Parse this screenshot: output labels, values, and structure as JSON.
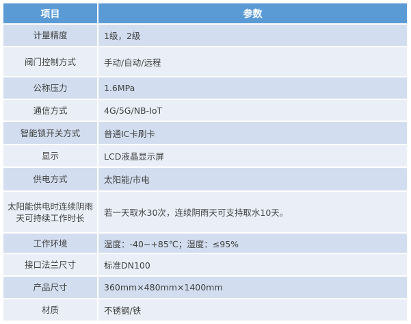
{
  "header": {
    "col1": "项目",
    "col2": "参数"
  },
  "rows": [
    {
      "k": "计量精度",
      "v": "1级，2级"
    },
    {
      "k": "阀门控制方式",
      "v": "手动/自动/远程"
    },
    {
      "k": "公称压力",
      "v": "1.6MPa"
    },
    {
      "k": "通信方式",
      "v": "4G/5G/NB-IoT"
    },
    {
      "k": "智能锁开关方式",
      "v": "普通IC卡刷卡"
    },
    {
      "k": "显示",
      "v": "LCD液晶显示屏"
    },
    {
      "k": "供电方式",
      "v": "太阳能/市电"
    },
    {
      "k": "太阳能供电时连续阴雨天可持续工作时长",
      "v": "若一天取水30次，连续阴雨天可支持取水10天。"
    },
    {
      "k": "工作环境",
      "v": "温度：-40~+85℃；湿度：≤95%"
    },
    {
      "k": "接口法兰尺寸",
      "v": "标准DN100"
    },
    {
      "k": "产品尺寸",
      "v": "360mm×480mm×1400mm"
    },
    {
      "k": "材质",
      "v": "不锈钢/铁"
    }
  ],
  "colors": {
    "header": "#5b9bd5",
    "row_dark": "#d2deef",
    "row_light": "#eaeff7"
  }
}
